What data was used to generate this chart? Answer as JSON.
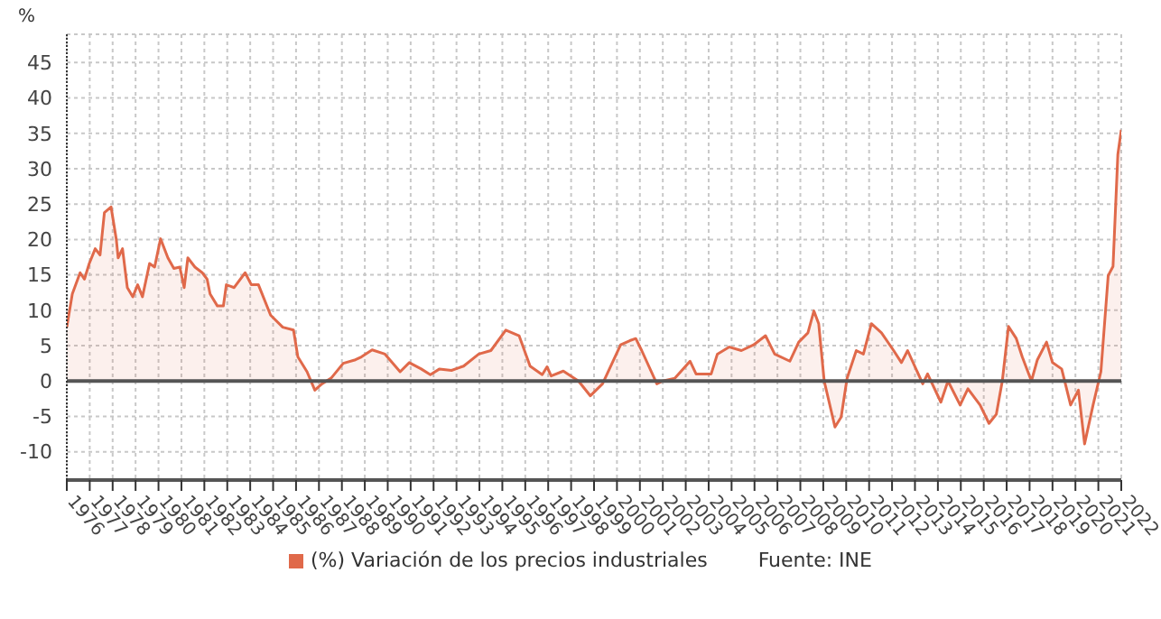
{
  "chart_data": {
    "type": "area",
    "ylabel": "%",
    "annotations": [
      "Fuente: INE"
    ],
    "x": [
      1976.0,
      1976.24,
      1976.58,
      1976.77,
      1976.98,
      1977.24,
      1977.45,
      1977.64,
      1977.93,
      1978.16,
      1978.24,
      1978.43,
      1978.64,
      1978.88,
      1979.09,
      1979.3,
      1979.61,
      1979.83,
      1980.09,
      1980.41,
      1980.67,
      1980.93,
      1981.12,
      1981.28,
      1981.59,
      1981.91,
      1982.12,
      1982.25,
      1982.57,
      1982.83,
      1982.96,
      1983.3,
      1983.78,
      1984.05,
      1984.36,
      1984.89,
      1985.42,
      1985.89,
      1986.08,
      1986.48,
      1986.82,
      1987.13,
      1987.53,
      1988.06,
      1988.59,
      1988.85,
      1989.32,
      1989.88,
      1990.54,
      1990.94,
      1991.46,
      1991.86,
      1992.26,
      1992.78,
      1993.31,
      1993.97,
      1994.5,
      1995.15,
      1995.73,
      1996.21,
      1996.74,
      1996.95,
      1997.13,
      1997.66,
      1998.32,
      1998.84,
      1999.37,
      2000.16,
      2000.56,
      2000.82,
      2001.08,
      2001.74,
      2002.0,
      2002.53,
      2003.19,
      2003.45,
      2004.11,
      2004.38,
      2004.9,
      2005.43,
      2005.96,
      2006.48,
      2006.88,
      2007.54,
      2007.93,
      2008.33,
      2008.59,
      2008.8,
      2009.04,
      2009.51,
      2009.78,
      2010.04,
      2010.44,
      2010.75,
      2011.1,
      2011.54,
      2012.07,
      2012.41,
      2012.68,
      2013.34,
      2013.55,
      2014.13,
      2014.44,
      2014.97,
      2015.31,
      2015.84,
      2016.23,
      2016.55,
      2016.81,
      2017.08,
      2017.42,
      2017.68,
      2018.08,
      2018.34,
      2018.74,
      2019.0,
      2019.4,
      2019.79,
      2020.13,
      2020.4,
      2020.77,
      2021.11,
      2021.43,
      2021.64,
      2021.85,
      2022.0
    ],
    "series": [
      {
        "name": "(%) Variación de los precios industriales",
        "color": "#e0694a",
        "values": [
          7.6,
          12.3,
          15.3,
          14.4,
          16.6,
          18.7,
          17.8,
          23.8,
          24.6,
          20,
          17.4,
          18.7,
          13.2,
          11.9,
          13.6,
          11.9,
          16.6,
          16.1,
          20.1,
          17.4,
          15.9,
          16.1,
          13.2,
          17.4,
          16.1,
          15.3,
          14.4,
          12.3,
          10.6,
          10.6,
          13.6,
          13.2,
          15.3,
          13.6,
          13.6,
          9.3,
          7.6,
          7.2,
          3.4,
          1.3,
          -1.3,
          -0.4,
          0.4,
          2.5,
          3.0,
          3.4,
          4.4,
          3.8,
          1.3,
          2.6,
          1.7,
          0.9,
          1.7,
          1.5,
          2.1,
          3.8,
          4.3,
          7.2,
          6.4,
          2.1,
          0.9,
          2.0,
          0.7,
          1.4,
          0,
          -2.1,
          -0.4,
          5.1,
          5.7,
          6.0,
          4.3,
          -0.4,
          0,
          0.4,
          2.8,
          1.0,
          1.0,
          3.8,
          4.8,
          4.3,
          5.1,
          6.4,
          3.8,
          2.8,
          5.5,
          6.8,
          9.9,
          8.1,
          0,
          -6.5,
          -5.1,
          0.4,
          4.3,
          3.8,
          8.1,
          6.8,
          4.3,
          2.6,
          4.3,
          -0.4,
          1.0,
          -3.0,
          0,
          -3.4,
          -1.1,
          -3.4,
          -6.0,
          -4.7,
          0,
          7.7,
          6.0,
          3.4,
          0,
          3.0,
          5.5,
          2.6,
          1.7,
          -3.4,
          -1.3,
          -8.9,
          -3.4,
          1.3,
          14.9,
          16.2,
          32,
          35.5
        ]
      }
    ],
    "xlim": [
      1976,
      2022
    ],
    "xticks": [
      1976,
      1977,
      1978,
      1979,
      1980,
      1981,
      1982,
      1983,
      1984,
      1985,
      1986,
      1987,
      1988,
      1989,
      1990,
      1991,
      1992,
      1993,
      1994,
      1995,
      1996,
      1997,
      1998,
      1999,
      2000,
      2001,
      2002,
      2003,
      2004,
      2005,
      2006,
      2007,
      2008,
      2009,
      2010,
      2011,
      2012,
      2013,
      2014,
      2015,
      2016,
      2017,
      2018,
      2019,
      2020,
      2021,
      2022
    ],
    "ylim": [
      -14,
      49
    ],
    "yticks": [
      -10,
      -5,
      0,
      5,
      10,
      15,
      20,
      25,
      30,
      35,
      40,
      45
    ],
    "ref_lines": [
      {
        "axis": "y",
        "value": 0,
        "color": "#555555"
      }
    ],
    "grid": true,
    "legend": "bottom"
  }
}
